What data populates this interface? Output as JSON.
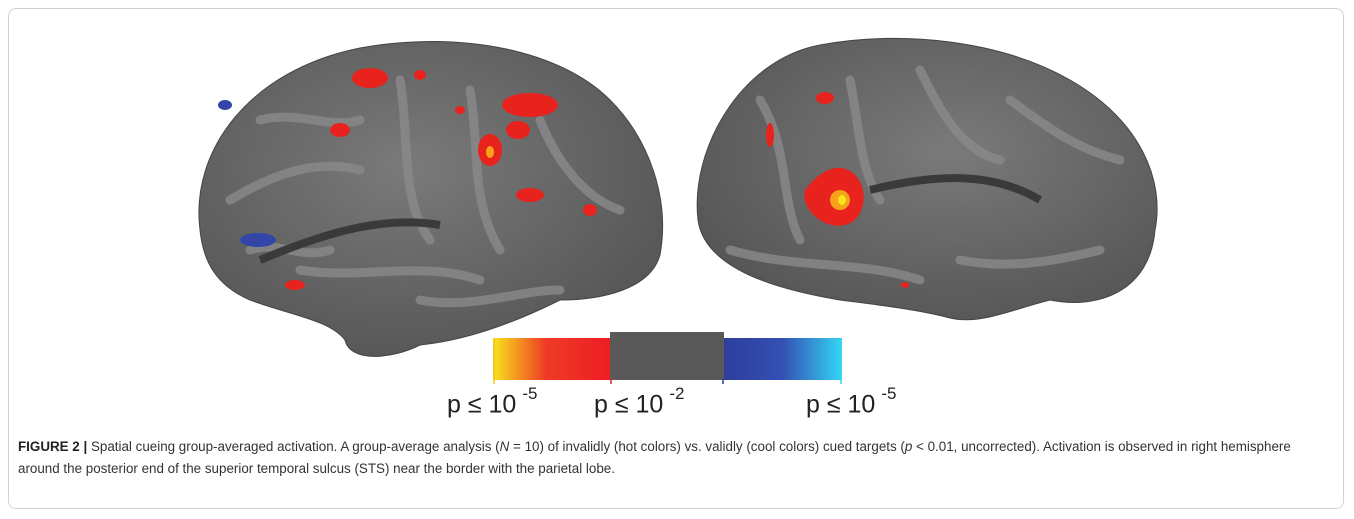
{
  "colorbar": {
    "labels": [
      {
        "base": "p ≤ 10",
        "exponent": "-5"
      },
      {
        "base": "p ≤ 10",
        "exponent": "-2"
      },
      {
        "base": "p ≤ 10",
        "exponent": "-5"
      }
    ]
  },
  "caption": {
    "label": "FIGURE 2 |",
    "parts": [
      "Spatial cueing group-averaged activation. A group-average analysis (",
      "N",
      " = 10) of invalidly (hot colors) vs. validly (cool colors) cued targets (",
      "p",
      " < 0.01, uncorrected). Activation is observed in right hemisphere around the posterior end of the superior temporal sulcus (STS) near the border with the parietal lobe."
    ]
  }
}
